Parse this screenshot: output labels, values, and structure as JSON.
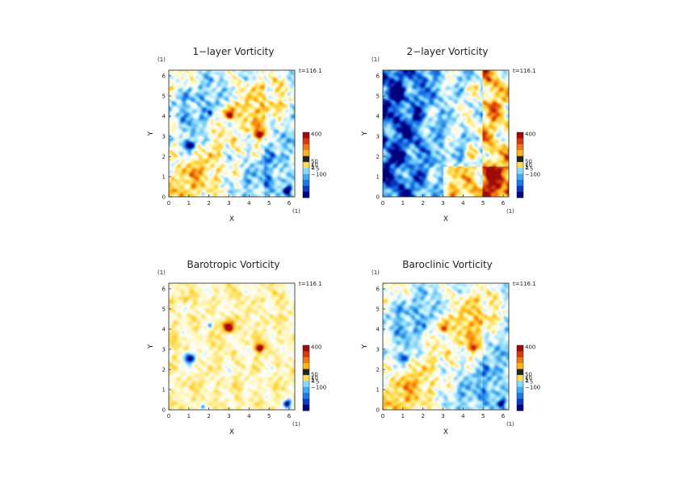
{
  "chart_data": [
    {
      "type": "heatmap",
      "title": "1−layer Vorticity",
      "xlabel": "X",
      "ylabel": "Y",
      "xlim": [
        0,
        6.28
      ],
      "ylim": [
        0,
        6.28
      ],
      "xticks": [
        "0",
        "1",
        "2",
        "3",
        "4",
        "5",
        "6"
      ],
      "yticks": [
        "0",
        "1",
        "2",
        "3",
        "4",
        "5",
        "6"
      ],
      "x_unit_note": "(1)",
      "y_unit_note": "(1)",
      "time_label": "t=116.1",
      "field": "one_layer",
      "colorbar": {
        "ticks": [
          "400",
          "50",
          "10",
          "5",
          "1",
          "−5",
          "−100"
        ],
        "range": [
          -100,
          400
        ]
      }
    },
    {
      "type": "heatmap",
      "title": "2−layer Vorticity",
      "xlabel": "X",
      "ylabel": "Y",
      "xlim": [
        0,
        6.28
      ],
      "ylim": [
        0,
        6.28
      ],
      "xticks": [
        "0",
        "1",
        "2",
        "3",
        "4",
        "5",
        "6"
      ],
      "yticks": [
        "0",
        "1",
        "2",
        "3",
        "4",
        "5",
        "6"
      ],
      "x_unit_note": "(1)",
      "y_unit_note": "(1)",
      "time_label": "t=116.1",
      "field": "two_layer",
      "colorbar": {
        "ticks": [
          "400",
          "50",
          "10",
          "5",
          "1",
          "−5",
          "−100"
        ],
        "range": [
          -100,
          400
        ]
      }
    },
    {
      "type": "heatmap",
      "title": "Barotropic Vorticity",
      "xlabel": "X",
      "ylabel": "Y",
      "xlim": [
        0,
        6.28
      ],
      "ylim": [
        0,
        6.28
      ],
      "xticks": [
        "0",
        "1",
        "2",
        "3",
        "4",
        "5",
        "6"
      ],
      "yticks": [
        "0",
        "1",
        "2",
        "3",
        "4",
        "5",
        "6"
      ],
      "x_unit_note": "(1)",
      "y_unit_note": "(1)",
      "time_label": "t=116.1",
      "field": "barotropic",
      "colorbar": {
        "ticks": [
          "400",
          "50",
          "10",
          "5",
          "1",
          "−5",
          "−100"
        ],
        "range": [
          -100,
          400
        ]
      }
    },
    {
      "type": "heatmap",
      "title": "Baroclinic Vorticity",
      "xlabel": "X",
      "ylabel": "Y",
      "xlim": [
        0,
        6.28
      ],
      "ylim": [
        0,
        6.28
      ],
      "xticks": [
        "0",
        "1",
        "2",
        "3",
        "4",
        "5",
        "6"
      ],
      "yticks": [
        "0",
        "1",
        "2",
        "3",
        "4",
        "5",
        "6"
      ],
      "x_unit_note": "(1)",
      "y_unit_note": "(1)",
      "time_label": "t=116.1",
      "field": "baroclinic",
      "colorbar": {
        "ticks": [
          "400",
          "50",
          "10",
          "5",
          "1",
          "−5",
          "−100"
        ],
        "range": [
          -100,
          400
        ]
      }
    }
  ],
  "colors": {
    "colormap": [
      "#00007a",
      "#0a3cc8",
      "#1e78e6",
      "#46aaf0",
      "#8cd7fa",
      "#c8f0ff",
      "#ffffff",
      "#fff5b4",
      "#ffdc50",
      "#ffb41e",
      "#f07814",
      "#d23c0a",
      "#a00a0a"
    ],
    "colorbar_bands": [
      "#a00a0a",
      "#d23c0a",
      "#f07814",
      "#ffb41e",
      "#222222",
      "#ffdc50",
      "#8cd7fa",
      "#46aaf0",
      "#1e78e6",
      "#0a3cc8",
      "#00007a"
    ]
  }
}
